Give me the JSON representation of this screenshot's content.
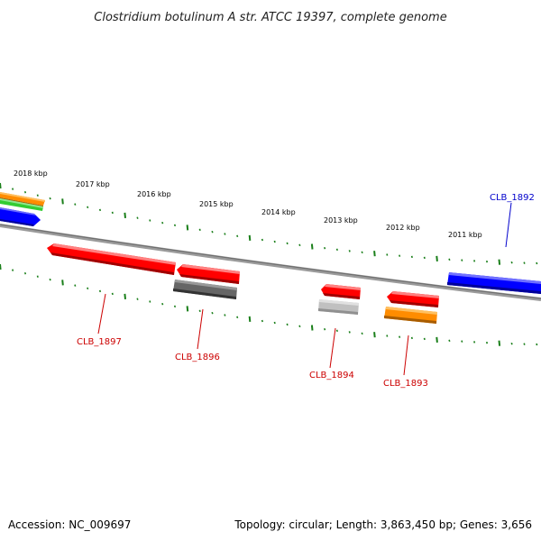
{
  "title": "Clostridium botulinum A str. ATCC 19397, complete genome",
  "footer": {
    "accession": "Accession: NC_009697",
    "summary": "Topology: circular; Length: 3,863,450 bp; Genes: 3,656"
  },
  "kbp_labels": [
    "2018 kbp",
    "2017 kbp",
    "2016 kbp",
    "2015 kbp",
    "2014 kbp",
    "2013 kbp",
    "2012 kbp",
    "2011 kbp"
  ],
  "gene_labels": [
    {
      "text": "CLB_1892",
      "color": "#0000cc"
    },
    {
      "text": "CLB_1897",
      "color": "#cc0000"
    },
    {
      "text": "CLB_1896",
      "color": "#cc0000"
    },
    {
      "text": "CLB_1894",
      "color": "#cc0000"
    },
    {
      "text": "CLB_1893",
      "color": "#cc0000"
    }
  ],
  "colors": {
    "backbone": "#808080",
    "ticks": "#1a7f1a",
    "forward_cds": "#0000ff",
    "reverse_cds": "#ff0000",
    "gray_feature": "#666666",
    "light_gray_feature": "#c0c0c0",
    "orange_feature": "#ff8c00",
    "green_feature": "#33cc33"
  }
}
